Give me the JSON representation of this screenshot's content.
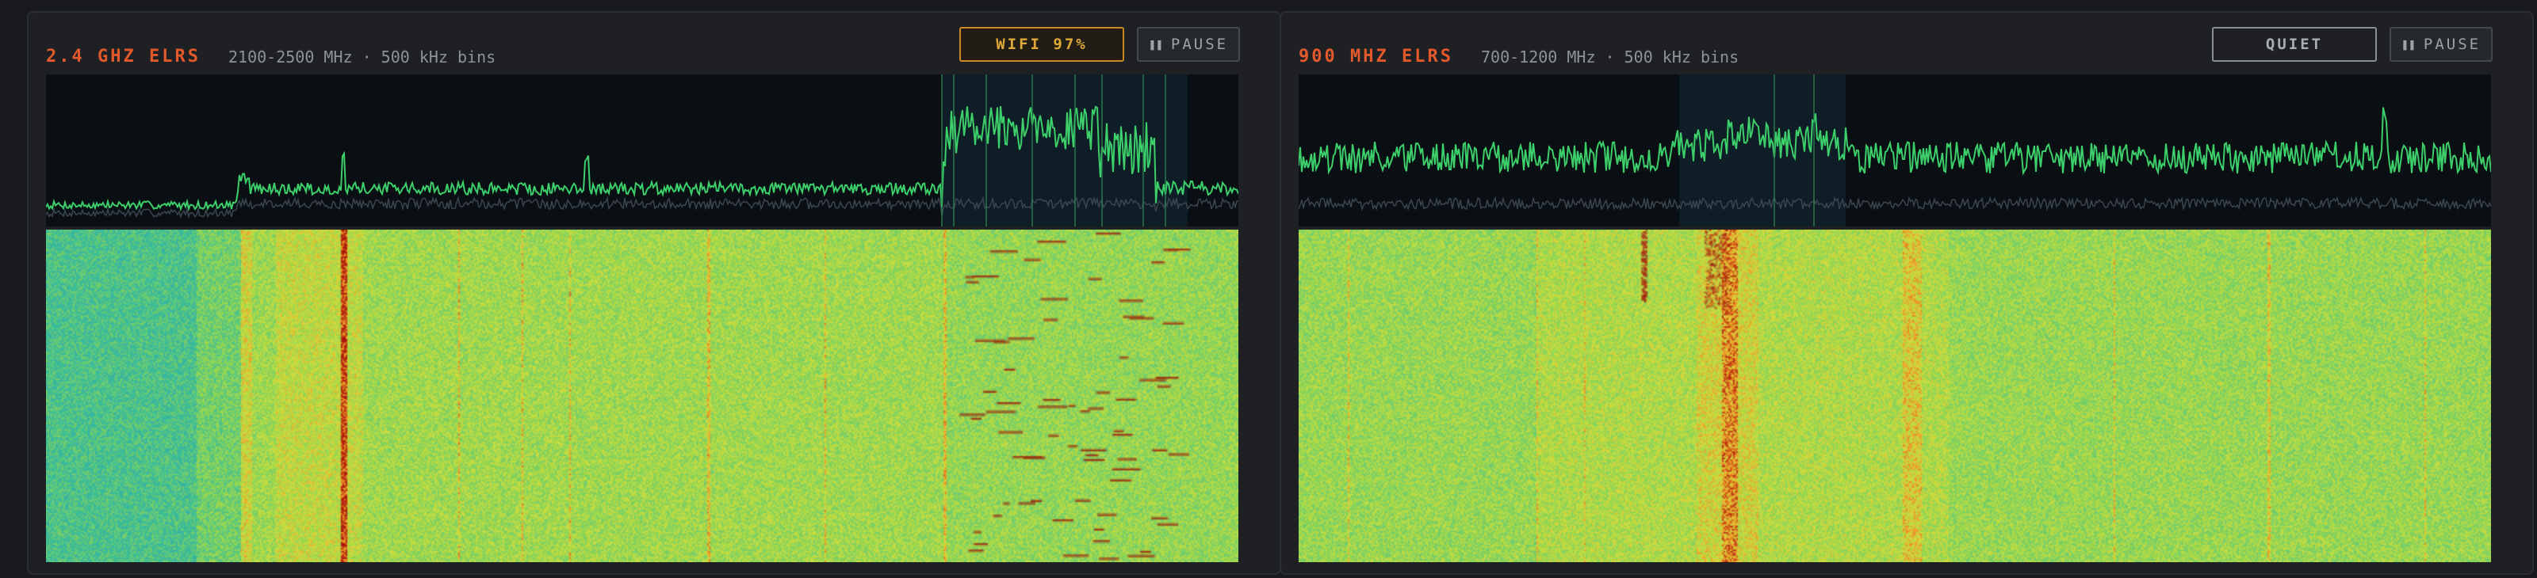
{
  "panels": [
    {
      "title": "2.4 GHZ ELRS",
      "subtitle": "2100-2500 MHz · 500 kHz bins",
      "status_badge": "WIFI 97%",
      "pause_label": "PAUSE",
      "pause_icon": "pause-icon",
      "status_color": "#e0a838"
    },
    {
      "title": "900 MHZ ELRS",
      "subtitle": "700-1200 MHz · 500 kHz bins",
      "status_badge": "QUIET",
      "pause_label": "PAUSE",
      "pause_icon": "pause-icon",
      "status_color": "#a9aeb4"
    }
  ],
  "colors": {
    "accent": "#e3592c",
    "trace": "#3ccf6a",
    "background": "#17191c",
    "panel": "#1e2023"
  }
}
